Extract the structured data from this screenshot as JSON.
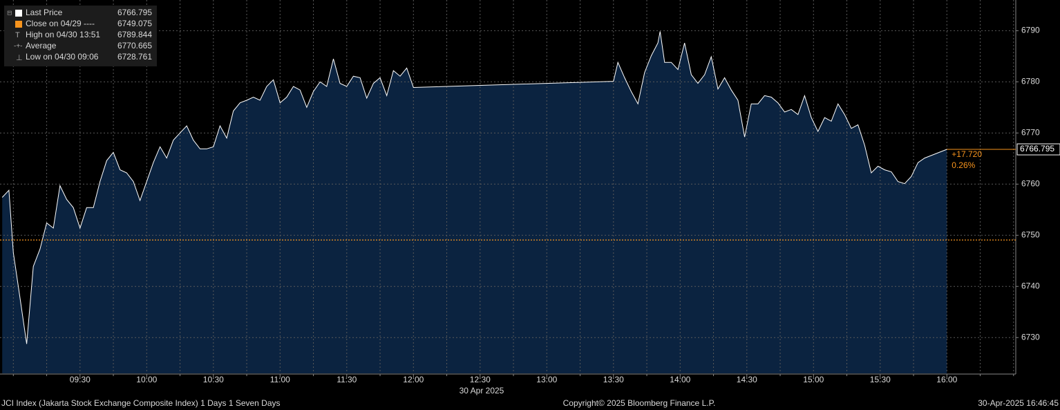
{
  "chart_data": {
    "type": "area",
    "x": [
      535,
      538,
      540,
      543,
      546,
      549,
      552,
      555,
      558,
      561,
      564,
      567,
      570,
      573,
      576,
      579,
      582,
      585,
      588,
      591,
      594,
      597,
      600,
      603,
      606,
      609,
      612,
      615,
      618,
      621,
      624,
      627,
      630,
      633,
      636,
      639,
      642,
      645,
      648,
      651,
      654,
      657,
      660,
      663,
      666,
      669,
      672,
      675,
      678,
      681,
      684,
      687,
      690,
      693,
      696,
      699,
      702,
      705,
      708,
      711,
      714,
      717,
      720,
      810,
      812,
      815,
      818,
      821,
      824,
      827,
      830,
      831,
      833,
      836,
      839,
      842,
      845,
      848,
      851,
      854,
      857,
      860,
      863,
      866,
      869,
      872,
      875,
      878,
      881,
      884,
      887,
      890,
      893,
      896,
      899,
      902,
      905,
      908,
      911,
      914,
      917,
      920,
      923,
      926,
      929,
      932,
      935,
      938,
      941,
      944,
      947,
      950,
      960
    ],
    "series": [
      {
        "color": "#ffffff",
        "fill": "#0b2340",
        "values": [
          6757.4,
          6758.8,
          6746.6,
          6737.8,
          6728.761,
          6743.9,
          6747.3,
          6752.4,
          6751.4,
          6759.7,
          6757.0,
          6755.4,
          6751.4,
          6755.4,
          6755.4,
          6760.5,
          6764.6,
          6766.2,
          6762.8,
          6762.2,
          6760.5,
          6756.8,
          6760.5,
          6764.2,
          6767.3,
          6765.1,
          6768.6,
          6770.0,
          6771.4,
          6768.6,
          6766.9,
          6766.9,
          6767.3,
          6771.4,
          6769.0,
          6774.3,
          6775.9,
          6776.4,
          6777.0,
          6776.4,
          6779.1,
          6780.4,
          6775.9,
          6777.0,
          6779.1,
          6778.4,
          6775.0,
          6778.1,
          6780.0,
          6779.1,
          6784.5,
          6779.7,
          6779.1,
          6781.1,
          6780.8,
          6776.8,
          6779.7,
          6780.8,
          6777.3,
          6782.2,
          6781.1,
          6782.7,
          6778.9,
          6780.1,
          6783.8,
          6780.8,
          6778.1,
          6775.7,
          6781.8,
          6785.1,
          6787.6,
          6789.844,
          6783.8,
          6783.8,
          6782.4,
          6787.6,
          6781.4,
          6779.7,
          6781.4,
          6784.9,
          6778.6,
          6780.8,
          6778.4,
          6776.4,
          6769.2,
          6775.7,
          6775.7,
          6777.3,
          6777.0,
          6775.9,
          6774.1,
          6774.6,
          6773.6,
          6777.3,
          6773.0,
          6770.3,
          6773.0,
          6772.3,
          6775.7,
          6773.6,
          6770.9,
          6771.6,
          6767.6,
          6762.2,
          6763.5,
          6762.8,
          6762.4,
          6760.5,
          6760.1,
          6761.5,
          6764.2,
          6765.1,
          6766.795
        ]
      }
    ],
    "reference_line": {
      "value": 6749.075,
      "color": "#f7941d"
    },
    "xlim": [
      534,
      991
    ],
    "ylim": [
      6723,
      6796
    ],
    "yticks": [
      6730,
      6740,
      6750,
      6760,
      6770,
      6780,
      6790
    ],
    "xticks": [
      {
        "value": 570,
        "label": "09:30"
      },
      {
        "value": 600,
        "label": "10:00"
      },
      {
        "value": 630,
        "label": "10:30"
      },
      {
        "value": 660,
        "label": "11:00"
      },
      {
        "value": 690,
        "label": "11:30"
      },
      {
        "value": 720,
        "label": "12:00"
      },
      {
        "value": 750,
        "label": "12:30"
      },
      {
        "value": 780,
        "label": "13:00"
      },
      {
        "value": 810,
        "label": "13:30"
      },
      {
        "value": 840,
        "label": "14:00"
      },
      {
        "value": 870,
        "label": "14:30"
      },
      {
        "value": 900,
        "label": "15:00"
      },
      {
        "value": 930,
        "label": "15:30"
      },
      {
        "value": 960,
        "label": "16:00"
      }
    ],
    "x_minor_ticks": [
      540,
      555,
      585,
      615,
      645,
      675,
      705,
      735,
      765,
      795,
      825,
      855,
      885,
      915,
      945,
      975,
      990
    ],
    "grid": true,
    "date_label": "30 Apr 2025",
    "legend": [
      {
        "label": "Last Price",
        "value": 6766.795
      },
      {
        "label": "Close on 04/29 ----",
        "value": 6749.075
      },
      {
        "label": "High on 04/30 13:51",
        "value": 6789.844
      },
      {
        "label": "Average",
        "value": 6770.665
      },
      {
        "label": "Low on 04/30 09:06",
        "value": 6728.761
      }
    ],
    "change": {
      "value": 17.72,
      "label": "+17.720"
    },
    "change_pct": {
      "value": 0.26,
      "label": "0.26%"
    },
    "footer": {
      "left": "JCI Index (Jakarta Stock Exchange Composite Index) 1 Days 1 Seven Days",
      "center": "Copyright© 2025 Bloomberg Finance L.P.",
      "right": "30-Apr-2025 16:46:45"
    }
  }
}
